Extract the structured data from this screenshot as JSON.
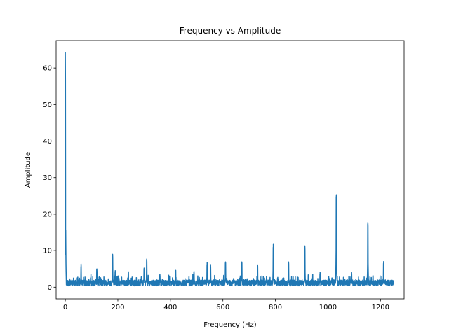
{
  "chart_data": {
    "type": "line",
    "title": "Frequency vs Amplitude",
    "xlabel": "Frequency (Hz)",
    "ylabel": "Amplitude",
    "xlim": [
      -35,
      1290
    ],
    "ylim": [
      -3.2,
      67.5
    ],
    "xticks": [
      0,
      200,
      400,
      600,
      800,
      1000,
      1200
    ],
    "yticks": [
      0,
      10,
      20,
      30,
      40,
      50,
      60
    ],
    "grid": false,
    "legend": "none",
    "color": "#1f77b4",
    "series": [
      {
        "baseline": {
          "x_range": [
            0,
            1250
          ],
          "level": 1.2,
          "noise_max": 3.0
        },
        "peaks": [
          {
            "x": 0,
            "y": 64.3
          },
          {
            "x": 1,
            "y": 8.8
          },
          {
            "x": 60,
            "y": 6.3
          },
          {
            "x": 120,
            "y": 5.0
          },
          {
            "x": 180,
            "y": 9.0
          },
          {
            "x": 190,
            "y": 4.5
          },
          {
            "x": 240,
            "y": 4.2
          },
          {
            "x": 300,
            "y": 5.2
          },
          {
            "x": 310,
            "y": 7.7
          },
          {
            "x": 360,
            "y": 3.5
          },
          {
            "x": 420,
            "y": 4.6
          },
          {
            "x": 490,
            "y": 4.3
          },
          {
            "x": 540,
            "y": 6.7
          },
          {
            "x": 553,
            "y": 6.2
          },
          {
            "x": 610,
            "y": 6.9
          },
          {
            "x": 672,
            "y": 6.9
          },
          {
            "x": 732,
            "y": 6.1
          },
          {
            "x": 792,
            "y": 11.9
          },
          {
            "x": 850,
            "y": 6.9
          },
          {
            "x": 912,
            "y": 11.3
          },
          {
            "x": 970,
            "y": 4.0
          },
          {
            "x": 1032,
            "y": 25.3
          },
          {
            "x": 1090,
            "y": 4.0
          },
          {
            "x": 1152,
            "y": 17.7
          },
          {
            "x": 1212,
            "y": 7.0
          }
        ]
      }
    ]
  }
}
